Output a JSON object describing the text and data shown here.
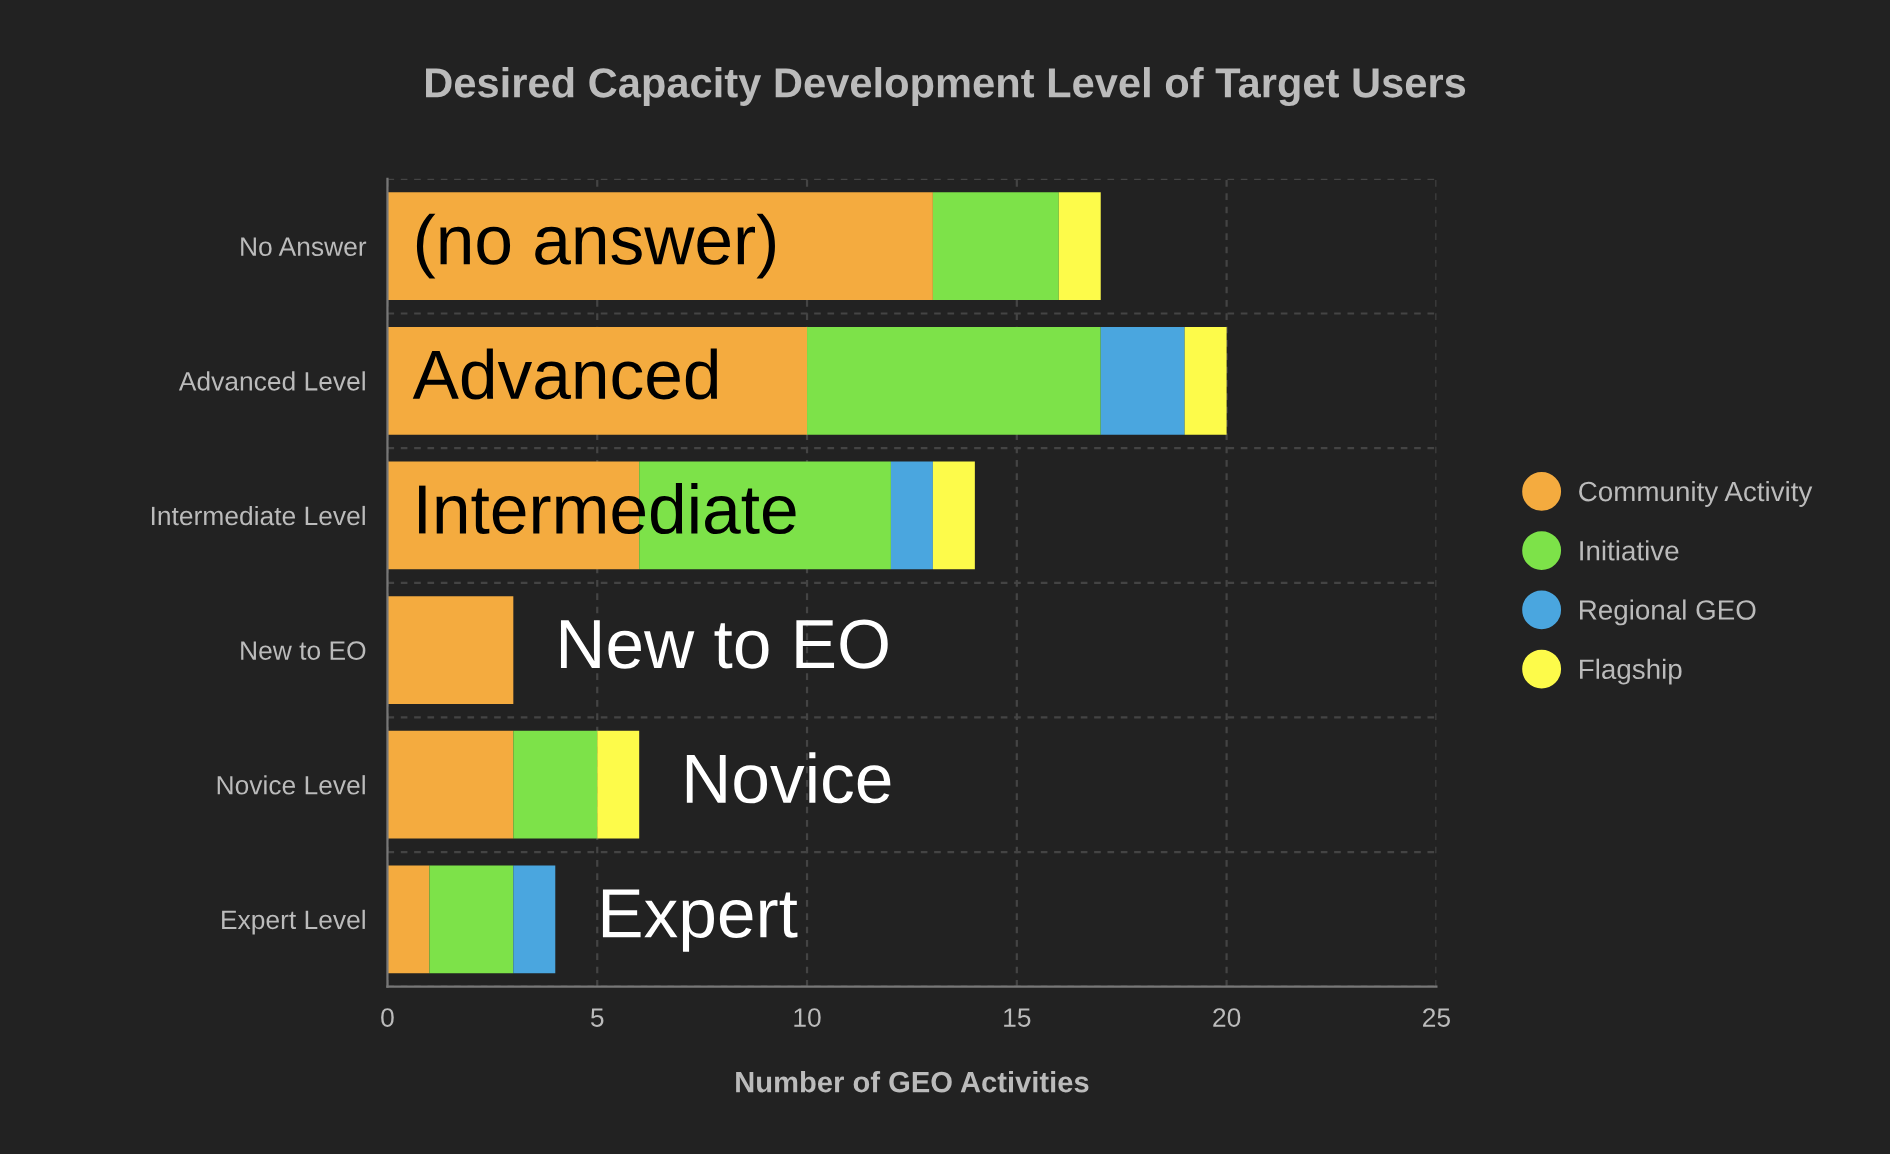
{
  "chart_data": {
    "type": "bar",
    "orientation": "horizontal",
    "stacked": true,
    "title": "Desired Capacity Development Level of Target Users",
    "xlabel": "Number of GEO Activities",
    "categories": [
      "No Answer",
      "Advanced Level",
      "Intermediate Level",
      "New to EO",
      "Novice Level",
      "Expert Level"
    ],
    "series": [
      {
        "name": "Community Activity",
        "color": "#f4ab3f",
        "values": [
          13,
          10,
          6,
          3,
          3,
          1
        ]
      },
      {
        "name": "Initiative",
        "color": "#7de249",
        "values": [
          3,
          7,
          6,
          0,
          2,
          2
        ]
      },
      {
        "name": "Regional GEO",
        "color": "#4aa6df",
        "values": [
          0,
          2,
          1,
          0,
          0,
          1
        ]
      },
      {
        "name": "Flagship",
        "color": "#fdfb4a",
        "values": [
          1,
          1,
          1,
          0,
          1,
          0
        ]
      }
    ],
    "xlim": [
      0,
      25
    ],
    "xticks": [
      0,
      5,
      10,
      15,
      20,
      25
    ],
    "grid": true,
    "legend": "right",
    "annotations": [
      {
        "text": "(no answer)",
        "x": 0,
        "y": "No Answer"
      },
      {
        "text": "Advanced",
        "x": 0,
        "y": "Advanced Level"
      },
      {
        "text": "Intermediate",
        "x": 0,
        "y": "Intermediate Level"
      },
      {
        "text": "New to EO",
        "x": 3,
        "y": "New to EO"
      },
      {
        "text": "Novice",
        "x": 6,
        "y": "Novice Level"
      },
      {
        "text": "Expert",
        "x": 4,
        "y": "Expert Level"
      }
    ]
  }
}
